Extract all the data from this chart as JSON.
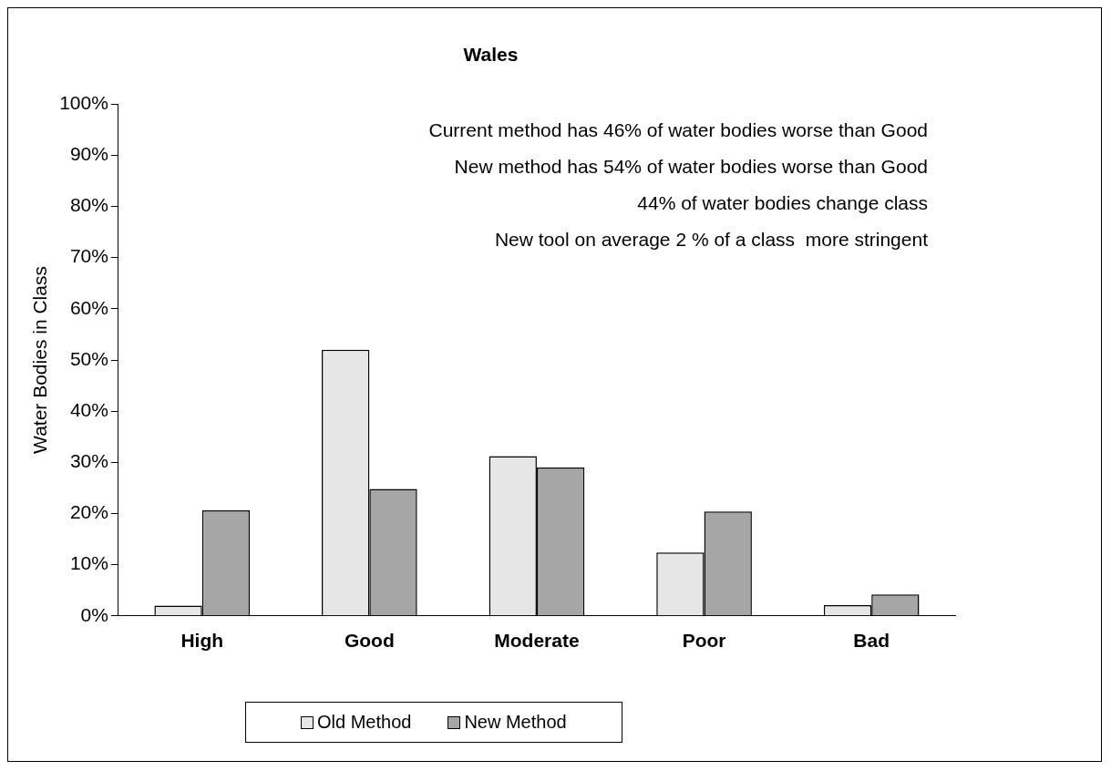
{
  "chart_data": {
    "type": "bar",
    "title": "Wales",
    "ylabel": "Water Bodies in Class",
    "categories": [
      "High",
      "Good",
      "Moderate",
      "Poor",
      "Bad"
    ],
    "series": [
      {
        "name": "Old Method",
        "color": "#e6e6e6",
        "values": [
          2,
          52,
          31.2,
          12.4,
          2.1
        ]
      },
      {
        "name": "New Method",
        "color": "#a6a6a6",
        "values": [
          20.6,
          24.8,
          29,
          20.4,
          4.2
        ]
      }
    ],
    "ylim": [
      0,
      100
    ],
    "yticks": [
      {
        "value": 0,
        "label": "0%"
      },
      {
        "value": 10,
        "label": "10%"
      },
      {
        "value": 20,
        "label": "20%"
      },
      {
        "value": 30,
        "label": "30%"
      },
      {
        "value": 40,
        "label": "40%"
      },
      {
        "value": 50,
        "label": "50%"
      },
      {
        "value": 60,
        "label": "60%"
      },
      {
        "value": 70,
        "label": "70%"
      },
      {
        "value": 80,
        "label": "80%"
      },
      {
        "value": 90,
        "label": "90%"
      },
      {
        "value": 100,
        "label": "100%"
      }
    ],
    "annotations": [
      "Current method has 46% of water bodies worse than Good",
      "New method has 54% of water bodies worse than Good",
      "44% of water bodies change class",
      "New tool on average 2 % of a class  more stringent"
    ],
    "grid": false,
    "legend": "bottom"
  }
}
